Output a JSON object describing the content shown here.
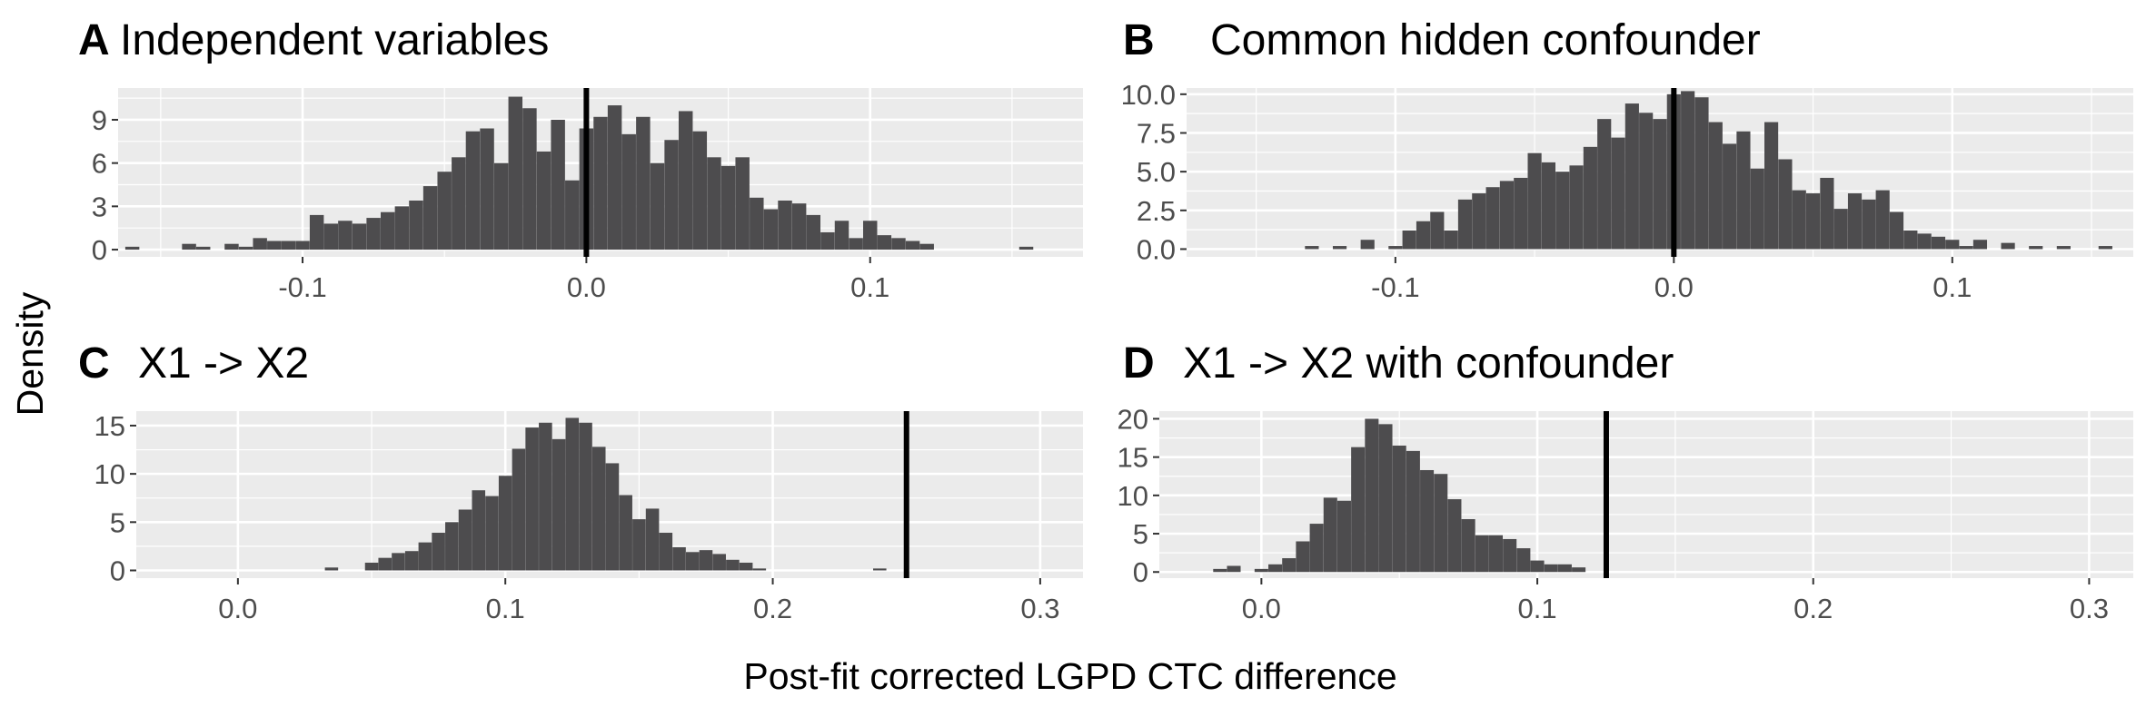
{
  "figure": {
    "ylabel": "Density",
    "xlabel": "Post-fit corrected LGPD CTC difference"
  },
  "colors": {
    "panel_bg": "#ebebeb",
    "grid_major": "#ffffff",
    "bar_fill": "#4d4c4e",
    "vline": "#000000",
    "tick_text": "#4d4d4d"
  },
  "chart_data": [
    {
      "type": "bar",
      "panel": "A",
      "title": "Independent variables",
      "xlabel": "",
      "ylabel": "",
      "xlim": [
        -0.165,
        0.175
      ],
      "ylim": [
        -0.5,
        11.2
      ],
      "xticks": [
        -0.1,
        0.0,
        0.1
      ],
      "xtick_labels": [
        "-0.1",
        "0.0",
        "0.1"
      ],
      "yticks": [
        0,
        3,
        6,
        9
      ],
      "ytick_labels": [
        "0",
        "3",
        "6",
        "9"
      ],
      "grid": true,
      "vline": 0.0,
      "bin_width": 0.00495,
      "x": [
        -0.16,
        -0.14,
        -0.135,
        -0.125,
        -0.12,
        -0.115,
        -0.11,
        -0.105,
        -0.1,
        -0.095,
        -0.09,
        -0.085,
        -0.08,
        -0.075,
        -0.07,
        -0.065,
        -0.06,
        -0.055,
        -0.05,
        -0.045,
        -0.04,
        -0.035,
        -0.03,
        -0.025,
        -0.02,
        -0.015,
        -0.01,
        -0.005,
        0.0,
        0.005,
        0.01,
        0.015,
        0.02,
        0.025,
        0.03,
        0.035,
        0.04,
        0.045,
        0.05,
        0.055,
        0.06,
        0.065,
        0.07,
        0.075,
        0.08,
        0.085,
        0.09,
        0.095,
        0.1,
        0.105,
        0.11,
        0.115,
        0.12,
        0.155
      ],
      "values": [
        0.2,
        0.4,
        0.2,
        0.4,
        0.2,
        0.8,
        0.6,
        0.6,
        0.6,
        2.4,
        1.8,
        2.0,
        1.8,
        2.2,
        2.6,
        3.0,
        3.4,
        4.4,
        5.4,
        6.4,
        8.2,
        8.4,
        6.0,
        10.6,
        9.8,
        6.8,
        9.0,
        4.8,
        8.4,
        9.2,
        10.0,
        8.0,
        9.2,
        6.0,
        7.6,
        9.6,
        8.2,
        6.4,
        5.8,
        6.4,
        3.6,
        2.8,
        3.4,
        3.2,
        2.4,
        1.2,
        2.0,
        0.8,
        2.0,
        1.0,
        0.8,
        0.6,
        0.4,
        0.2
      ]
    },
    {
      "type": "bar",
      "panel": "B",
      "title": "Common hidden confounder",
      "xlabel": "",
      "ylabel": "",
      "xlim": [
        -0.175,
        0.165
      ],
      "ylim": [
        -0.5,
        10.4
      ],
      "xticks": [
        -0.1,
        0.0,
        0.1
      ],
      "xtick_labels": [
        "-0.1",
        "0.0",
        "0.1"
      ],
      "yticks": [
        0,
        2.5,
        5,
        7.5,
        10
      ],
      "ytick_labels": [
        "0.0",
        "2.5",
        "5.0",
        "7.5",
        "10.0"
      ],
      "grid": true,
      "vline": 0.0,
      "bin_width": 0.00495,
      "x": [
        -0.13,
        -0.12,
        -0.11,
        -0.1,
        -0.095,
        -0.09,
        -0.085,
        -0.08,
        -0.075,
        -0.07,
        -0.065,
        -0.06,
        -0.055,
        -0.05,
        -0.045,
        -0.04,
        -0.035,
        -0.03,
        -0.025,
        -0.02,
        -0.015,
        -0.01,
        -0.005,
        0.0,
        0.005,
        0.01,
        0.015,
        0.02,
        0.025,
        0.03,
        0.035,
        0.04,
        0.045,
        0.05,
        0.055,
        0.06,
        0.065,
        0.07,
        0.075,
        0.08,
        0.085,
        0.09,
        0.095,
        0.1,
        0.105,
        0.11,
        0.12,
        0.13,
        0.14,
        0.155
      ],
      "values": [
        0.2,
        0.2,
        0.6,
        0.2,
        1.2,
        1.8,
        2.4,
        1.2,
        3.2,
        3.6,
        4.0,
        4.4,
        4.6,
        6.2,
        5.6,
        5.0,
        5.4,
        6.6,
        8.4,
        7.2,
        9.4,
        8.8,
        8.4,
        10.0,
        10.2,
        9.8,
        8.2,
        6.8,
        7.6,
        5.2,
        8.2,
        5.8,
        3.8,
        3.6,
        4.6,
        2.6,
        3.6,
        3.2,
        3.8,
        2.4,
        1.2,
        1.0,
        0.8,
        0.6,
        0.2,
        0.6,
        0.4,
        0.2,
        0.2,
        0.2
      ]
    },
    {
      "type": "bar",
      "panel": "C",
      "title": "X1 -> X2",
      "xlabel": "",
      "ylabel": "",
      "xlim": [
        -0.038,
        0.316
      ],
      "ylim": [
        -0.8,
        16.5
      ],
      "xticks": [
        0.0,
        0.1,
        0.2,
        0.3
      ],
      "xtick_labels": [
        "0.0",
        "0.1",
        "0.2",
        "0.3"
      ],
      "yticks": [
        0,
        5,
        10,
        15
      ],
      "ytick_labels": [
        "0",
        "5",
        "10",
        "15"
      ],
      "grid": true,
      "vline": 0.25,
      "bin_width": 0.00495,
      "x": [
        0.035,
        0.05,
        0.055,
        0.06,
        0.065,
        0.07,
        0.075,
        0.08,
        0.085,
        0.09,
        0.095,
        0.1,
        0.105,
        0.11,
        0.115,
        0.12,
        0.125,
        0.13,
        0.135,
        0.14,
        0.145,
        0.15,
        0.155,
        0.16,
        0.165,
        0.17,
        0.175,
        0.18,
        0.185,
        0.19,
        0.195,
        0.24
      ],
      "values": [
        0.3,
        0.8,
        1.3,
        1.8,
        2.0,
        2.9,
        3.9,
        5.0,
        6.3,
        8.3,
        7.7,
        9.8,
        12.6,
        14.8,
        15.3,
        13.6,
        15.8,
        15.3,
        12.8,
        11.1,
        7.8,
        5.3,
        6.4,
        3.9,
        2.4,
        1.9,
        2.1,
        1.7,
        1.1,
        0.8,
        0.2,
        0.2
      ]
    },
    {
      "type": "bar",
      "panel": "D",
      "title": "X1 -> X2 with confounder",
      "xlabel": "",
      "ylabel": "",
      "xlim": [
        -0.037,
        0.316
      ],
      "ylim": [
        -0.8,
        21.0
      ],
      "xticks": [
        0.0,
        0.1,
        0.2,
        0.3
      ],
      "xtick_labels": [
        "0.0",
        "0.1",
        "0.2",
        "0.3"
      ],
      "yticks": [
        0,
        5,
        10,
        15,
        20
      ],
      "ytick_labels": [
        "0",
        "5",
        "10",
        "15",
        "20"
      ],
      "grid": true,
      "vline": 0.125,
      "bin_width": 0.00495,
      "x": [
        -0.015,
        -0.01,
        0.0,
        0.005,
        0.01,
        0.015,
        0.02,
        0.025,
        0.03,
        0.035,
        0.04,
        0.045,
        0.05,
        0.055,
        0.06,
        0.065,
        0.07,
        0.075,
        0.08,
        0.085,
        0.09,
        0.095,
        0.1,
        0.105,
        0.11,
        0.115
      ],
      "values": [
        0.4,
        0.8,
        0.4,
        1.0,
        1.8,
        4.0,
        6.3,
        9.7,
        9.3,
        16.3,
        20.0,
        19.3,
        16.5,
        15.8,
        13.3,
        12.8,
        9.5,
        6.9,
        4.8,
        4.8,
        4.3,
        3.1,
        1.5,
        1.0,
        1.0,
        0.6
      ]
    }
  ]
}
